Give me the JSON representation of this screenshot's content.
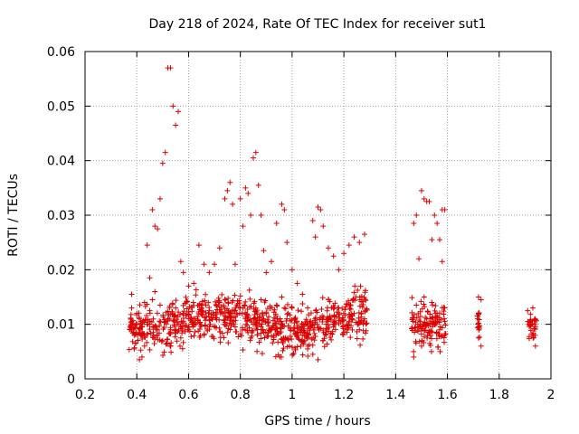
{
  "chart_data": {
    "type": "scatter",
    "title": "Day 218 of 2024, Rate Of TEC Index for receiver sut1",
    "xlabel": "GPS time / hours",
    "ylabel": "ROTI / TECUs",
    "xlim": [
      0.2,
      2.0
    ],
    "ylim": [
      0,
      0.06
    ],
    "xticks": [
      "0.2",
      "0.4",
      "0.6",
      "0.8",
      "1",
      "1.2",
      "1.4",
      "1.6",
      "1.8",
      "2"
    ],
    "yticks": [
      "0",
      "0.01",
      "0.02",
      "0.03",
      "0.04",
      "0.05",
      "0.06"
    ],
    "grid": true,
    "marker": "+",
    "color": "#dd0000",
    "series": [
      {
        "name": "ROTI",
        "points": [
          [
            0.38,
            0.0155
          ],
          [
            0.38,
            0.013
          ],
          [
            0.38,
            0.0105
          ],
          [
            0.38,
            0.009
          ],
          [
            0.39,
            0.0055
          ],
          [
            0.39,
            0.008
          ],
          [
            0.4,
            0.01
          ],
          [
            0.4,
            0.012
          ],
          [
            0.41,
            0.0035
          ],
          [
            0.41,
            0.011
          ],
          [
            0.42,
            0.004
          ],
          [
            0.42,
            0.0095
          ],
          [
            0.43,
            0.014
          ],
          [
            0.43,
            0.006
          ],
          [
            0.44,
            0.0245
          ],
          [
            0.44,
            0.01
          ],
          [
            0.45,
            0.0185
          ],
          [
            0.45,
            0.0125
          ],
          [
            0.46,
            0.031
          ],
          [
            0.46,
            0.0145
          ],
          [
            0.47,
            0.028
          ],
          [
            0.47,
            0.016
          ],
          [
            0.48,
            0.0275
          ],
          [
            0.48,
            0.009
          ],
          [
            0.49,
            0.033
          ],
          [
            0.49,
            0.0135
          ],
          [
            0.5,
            0.0395
          ],
          [
            0.5,
            0.007
          ],
          [
            0.51,
            0.0415
          ],
          [
            0.51,
            0.0105
          ],
          [
            0.52,
            0.057
          ],
          [
            0.52,
            0.011
          ],
          [
            0.53,
            0.057
          ],
          [
            0.53,
            0.009
          ],
          [
            0.54,
            0.05
          ],
          [
            0.55,
            0.0465
          ],
          [
            0.55,
            0.013
          ],
          [
            0.56,
            0.049
          ],
          [
            0.56,
            0.01
          ],
          [
            0.57,
            0.0215
          ],
          [
            0.57,
            0.0075
          ],
          [
            0.58,
            0.0195
          ],
          [
            0.58,
            0.012
          ],
          [
            0.6,
            0.017
          ],
          [
            0.6,
            0.009
          ],
          [
            0.62,
            0.0175
          ],
          [
            0.62,
            0.011
          ],
          [
            0.64,
            0.0245
          ],
          [
            0.64,
            0.0135
          ],
          [
            0.66,
            0.021
          ],
          [
            0.66,
            0.008
          ],
          [
            0.68,
            0.0195
          ],
          [
            0.68,
            0.0125
          ],
          [
            0.7,
            0.021
          ],
          [
            0.7,
            0.0095
          ],
          [
            0.72,
            0.024
          ],
          [
            0.72,
            0.014
          ],
          [
            0.74,
            0.033
          ],
          [
            0.74,
            0.01
          ],
          [
            0.75,
            0.0345
          ],
          [
            0.75,
            0.0085
          ],
          [
            0.76,
            0.036
          ],
          [
            0.76,
            0.012
          ],
          [
            0.77,
            0.032
          ],
          [
            0.78,
            0.021
          ],
          [
            0.78,
            0.0095
          ],
          [
            0.8,
            0.033
          ],
          [
            0.8,
            0.013
          ],
          [
            0.81,
            0.028
          ],
          [
            0.82,
            0.035
          ],
          [
            0.82,
            0.011
          ],
          [
            0.83,
            0.034
          ],
          [
            0.84,
            0.03
          ],
          [
            0.84,
            0.0075
          ],
          [
            0.85,
            0.0405
          ],
          [
            0.85,
            0.01
          ],
          [
            0.86,
            0.0415
          ],
          [
            0.86,
            0.013
          ],
          [
            0.87,
            0.0355
          ],
          [
            0.88,
            0.03
          ],
          [
            0.88,
            0.0145
          ],
          [
            0.89,
            0.0235
          ],
          [
            0.9,
            0.0195
          ],
          [
            0.9,
            0.012
          ],
          [
            0.92,
            0.0215
          ],
          [
            0.92,
            0.009
          ],
          [
            0.94,
            0.0285
          ],
          [
            0.94,
            0.0135
          ],
          [
            0.96,
            0.032
          ],
          [
            0.96,
            0.015
          ],
          [
            0.97,
            0.031
          ],
          [
            0.98,
            0.025
          ],
          [
            0.98,
            0.011
          ],
          [
            1.0,
            0.02
          ],
          [
            1.0,
            0.013
          ],
          [
            1.02,
            0.0175
          ],
          [
            1.02,
            0.008
          ],
          [
            1.04,
            0.0155
          ],
          [
            1.04,
            0.01
          ],
          [
            1.06,
            0.013
          ],
          [
            1.06,
            0.0055
          ],
          [
            1.08,
            0.029
          ],
          [
            1.08,
            0.0045
          ],
          [
            1.09,
            0.026
          ],
          [
            1.1,
            0.0315
          ],
          [
            1.1,
            0.0035
          ],
          [
            1.11,
            0.031
          ],
          [
            1.12,
            0.028
          ],
          [
            1.12,
            0.007
          ],
          [
            1.14,
            0.024
          ],
          [
            1.14,
            0.011
          ],
          [
            1.16,
            0.0225
          ],
          [
            1.16,
            0.0095
          ],
          [
            1.18,
            0.02
          ],
          [
            1.18,
            0.013
          ],
          [
            1.2,
            0.023
          ],
          [
            1.2,
            0.0085
          ],
          [
            1.22,
            0.0245
          ],
          [
            1.22,
            0.0105
          ],
          [
            1.24,
            0.026
          ],
          [
            1.24,
            0.012
          ],
          [
            1.26,
            0.025
          ],
          [
            1.26,
            0.009
          ],
          [
            1.28,
            0.0265
          ],
          [
            1.28,
            0.011
          ],
          [
            1.47,
            0.0285
          ],
          [
            1.47,
            0.004
          ],
          [
            1.48,
            0.03
          ],
          [
            1.48,
            0.0135
          ],
          [
            1.49,
            0.022
          ],
          [
            1.49,
            0.0095
          ],
          [
            1.5,
            0.0345
          ],
          [
            1.5,
            0.006
          ],
          [
            1.51,
            0.033
          ],
          [
            1.51,
            0.015
          ],
          [
            1.52,
            0.0325
          ],
          [
            1.52,
            0.011
          ],
          [
            1.53,
            0.0325
          ],
          [
            1.53,
            0.0085
          ],
          [
            1.54,
            0.0255
          ],
          [
            1.54,
            0.014
          ],
          [
            1.55,
            0.03
          ],
          [
            1.55,
            0.01
          ],
          [
            1.56,
            0.0285
          ],
          [
            1.56,
            0.012
          ],
          [
            1.57,
            0.0255
          ],
          [
            1.57,
            0.009
          ],
          [
            1.58,
            0.031
          ],
          [
            1.58,
            0.0215
          ],
          [
            1.59,
            0.031
          ],
          [
            1.59,
            0.008
          ],
          [
            1.72,
            0.015
          ],
          [
            1.72,
            0.012
          ],
          [
            1.72,
            0.0095
          ],
          [
            1.72,
            0.0075
          ],
          [
            1.73,
            0.0145
          ],
          [
            1.73,
            0.006
          ],
          [
            1.91,
            0.0125
          ],
          [
            1.92,
            0.01
          ],
          [
            1.93,
            0.013
          ],
          [
            1.93,
            0.008
          ],
          [
            1.94,
            0.0095
          ],
          [
            1.94,
            0.006
          ]
        ]
      }
    ],
    "dense_bands": [
      {
        "x0": 0.37,
        "x1": 1.29,
        "ymin": 0.004,
        "ymax": 0.017,
        "n": 820,
        "seed": 7
      },
      {
        "x0": 1.46,
        "x1": 1.595,
        "ymin": 0.005,
        "ymax": 0.017,
        "n": 120,
        "seed": 11
      },
      {
        "x0": 1.715,
        "x1": 1.725,
        "ymin": 0.006,
        "ymax": 0.015,
        "n": 14,
        "seed": 13
      },
      {
        "x0": 1.91,
        "x1": 1.945,
        "ymin": 0.005,
        "ymax": 0.013,
        "n": 30,
        "seed": 17
      }
    ]
  }
}
